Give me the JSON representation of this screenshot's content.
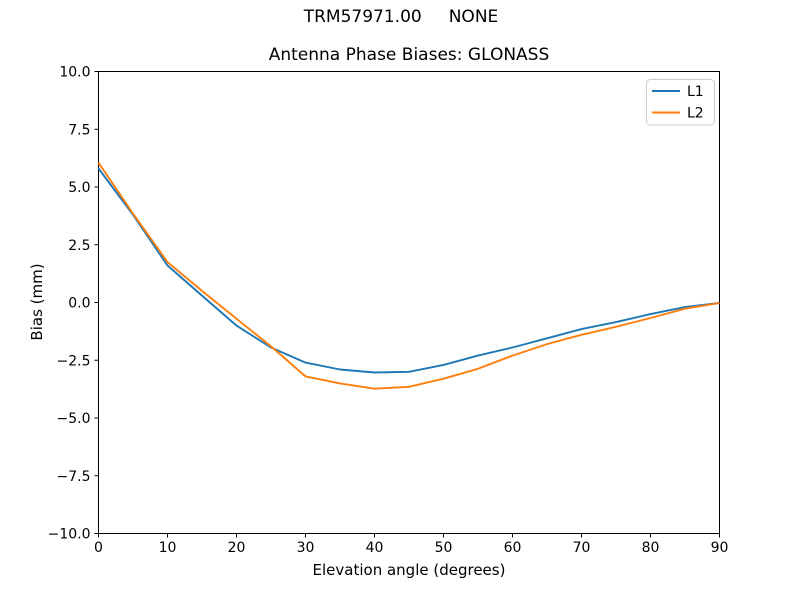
{
  "figure": {
    "suptitle": "TRM57971.00     NONE"
  },
  "axes": {
    "title": "Antenna Phase Biases: GLONASS",
    "xlabel": "Elevation angle (degrees)",
    "ylabel": "Bias (mm)",
    "x_tick_labels": [
      "0",
      "10",
      "20",
      "30",
      "40",
      "50",
      "60",
      "70",
      "80",
      "90"
    ],
    "y_tick_labels": [
      "10.0",
      "7.5",
      "5.0",
      "2.5",
      "0.0",
      "−2.5",
      "−5.0",
      "−7.5",
      "−10.0"
    ]
  },
  "legend": {
    "entries": [
      {
        "label": "L1",
        "color": "#1f77b4"
      },
      {
        "label": "L2",
        "color": "#ff7f0e"
      }
    ]
  },
  "chart_data": {
    "type": "line",
    "title": "Antenna Phase Biases: GLONASS",
    "suptitle": "TRM57971.00     NONE",
    "xlabel": "Elevation angle (degrees)",
    "ylabel": "Bias (mm)",
    "xlim": [
      0,
      90
    ],
    "ylim": [
      -10,
      10
    ],
    "xticks": [
      0,
      10,
      20,
      30,
      40,
      50,
      60,
      70,
      80,
      90
    ],
    "yticks": [
      10,
      7.5,
      5,
      2.5,
      0,
      -2.5,
      -5,
      -7.5,
      -10
    ],
    "grid": false,
    "legend_position": "upper right",
    "x": [
      0,
      5,
      10,
      15,
      20,
      25,
      30,
      35,
      40,
      45,
      50,
      55,
      60,
      65,
      70,
      75,
      80,
      85,
      90
    ],
    "series": [
      {
        "name": "L1",
        "color": "#1f77b4",
        "values": [
          5.8,
          3.8,
          1.6,
          0.3,
          -1.0,
          -1.95,
          -2.6,
          -2.9,
          -3.03,
          -3.0,
          -2.7,
          -2.3,
          -1.95,
          -1.55,
          -1.15,
          -0.85,
          -0.5,
          -0.2,
          -0.02
        ]
      },
      {
        "name": "L2",
        "color": "#ff7f0e",
        "values": [
          6.05,
          3.85,
          1.75,
          0.5,
          -0.7,
          -1.9,
          -3.2,
          -3.5,
          -3.73,
          -3.65,
          -3.3,
          -2.87,
          -2.3,
          -1.8,
          -1.4,
          -1.05,
          -0.67,
          -0.27,
          -0.02
        ]
      }
    ]
  }
}
